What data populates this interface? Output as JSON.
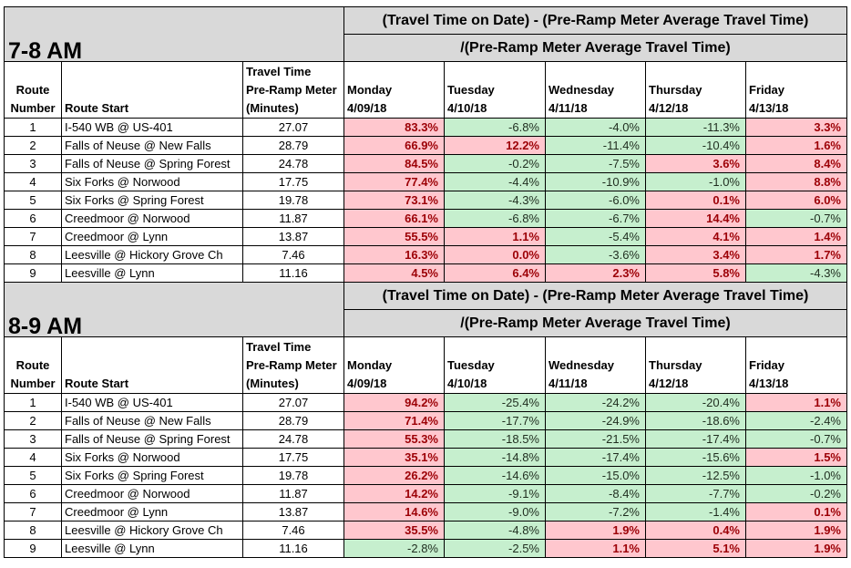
{
  "formula": [
    "(Travel Time on Date) - (Pre-Ramp Meter Average Travel Time)",
    "/(Pre-Ramp Meter Average Travel Time)"
  ],
  "headers": {
    "route_number": [
      "Route",
      "Number"
    ],
    "route_start": "Route Start",
    "pre_ramp": [
      "Travel Time",
      "Pre-Ramp Meter",
      "(Minutes)"
    ],
    "days": [
      {
        "name": "Monday",
        "date": "4/09/18"
      },
      {
        "name": "Tuesday",
        "date": "4/10/18"
      },
      {
        "name": "Wednesday",
        "date": "4/11/18"
      },
      {
        "name": "Thursday",
        "date": "4/12/18"
      },
      {
        "name": "Friday",
        "date": "4/13/18"
      }
    ]
  },
  "colors": {
    "increase_fill": "#ffc7ce",
    "increase_text": "#9c0006",
    "decrease_fill": "#c6efce",
    "header_fill": "#d9d9d9"
  },
  "blocks": [
    {
      "title": "7-8 AM",
      "rows": [
        {
          "num": "1",
          "start": "I-540 WB @ US-401",
          "pre": "27.07",
          "vals": [
            "83.3%",
            "-6.8%",
            "-4.0%",
            "-11.3%",
            "3.3%"
          ]
        },
        {
          "num": "2",
          "start": "Falls of Neuse @ New Falls",
          "pre": "28.79",
          "vals": [
            "66.9%",
            "12.2%",
            "-11.4%",
            "-10.4%",
            "1.6%"
          ]
        },
        {
          "num": "3",
          "start": "Falls of Neuse @ Spring Forest",
          "pre": "24.78",
          "vals": [
            "84.5%",
            "-0.2%",
            "-7.5%",
            "3.6%",
            "8.4%"
          ]
        },
        {
          "num": "4",
          "start": "Six Forks @ Norwood",
          "pre": "17.75",
          "vals": [
            "77.4%",
            "-4.4%",
            "-10.9%",
            "-1.0%",
            "8.8%"
          ]
        },
        {
          "num": "5",
          "start": "Six Forks @ Spring Forest",
          "pre": "19.78",
          "vals": [
            "73.1%",
            "-4.3%",
            "-6.0%",
            "0.1%",
            "6.0%"
          ]
        },
        {
          "num": "6",
          "start": "Creedmoor @ Norwood",
          "pre": "11.87",
          "vals": [
            "66.1%",
            "-6.8%",
            "-6.7%",
            "14.4%",
            "-0.7%"
          ]
        },
        {
          "num": "7",
          "start": "Creedmoor @ Lynn",
          "pre": "13.87",
          "vals": [
            "55.5%",
            "1.1%",
            "-5.4%",
            "4.1%",
            "1.4%"
          ]
        },
        {
          "num": "8",
          "start": "Leesville @ Hickory Grove Ch",
          "pre": "7.46",
          "vals": [
            "16.3%",
            "0.0%",
            "-3.6%",
            "3.4%",
            "1.7%"
          ]
        },
        {
          "num": "9",
          "start": "Leesville @ Lynn",
          "pre": "11.16",
          "vals": [
            "4.5%",
            "6.4%",
            "2.3%",
            "5.8%",
            "-4.3%"
          ]
        }
      ]
    },
    {
      "title": "8-9 AM",
      "rows": [
        {
          "num": "1",
          "start": "I-540 WB @ US-401",
          "pre": "27.07",
          "vals": [
            "94.2%",
            "-25.4%",
            "-24.2%",
            "-20.4%",
            "1.1%"
          ]
        },
        {
          "num": "2",
          "start": "Falls of Neuse @ New Falls",
          "pre": "28.79",
          "vals": [
            "71.4%",
            "-17.7%",
            "-24.9%",
            "-18.6%",
            "-2.4%"
          ]
        },
        {
          "num": "3",
          "start": "Falls of Neuse @ Spring Forest",
          "pre": "24.78",
          "vals": [
            "55.3%",
            "-18.5%",
            "-21.5%",
            "-17.4%",
            "-0.7%"
          ]
        },
        {
          "num": "4",
          "start": "Six Forks @ Norwood",
          "pre": "17.75",
          "vals": [
            "35.1%",
            "-14.8%",
            "-17.4%",
            "-15.6%",
            "1.5%"
          ]
        },
        {
          "num": "5",
          "start": "Six Forks @ Spring Forest",
          "pre": "19.78",
          "vals": [
            "26.2%",
            "-14.6%",
            "-15.0%",
            "-12.5%",
            "-1.0%"
          ]
        },
        {
          "num": "6",
          "start": "Creedmoor @ Norwood",
          "pre": "11.87",
          "vals": [
            "14.2%",
            "-9.1%",
            "-8.4%",
            "-7.7%",
            "-0.2%"
          ]
        },
        {
          "num": "7",
          "start": "Creedmoor @ Lynn",
          "pre": "13.87",
          "vals": [
            "14.6%",
            "-9.0%",
            "-7.2%",
            "-1.4%",
            "0.1%"
          ]
        },
        {
          "num": "8",
          "start": "Leesville @ Hickory Grove Ch",
          "pre": "7.46",
          "vals": [
            "35.5%",
            "-4.8%",
            "1.9%",
            "0.4%",
            "1.9%"
          ]
        },
        {
          "num": "9",
          "start": "Leesville @ Lynn",
          "pre": "11.16",
          "vals": [
            "-2.8%",
            "-2.5%",
            "1.1%",
            "5.1%",
            "1.9%"
          ]
        }
      ]
    }
  ]
}
